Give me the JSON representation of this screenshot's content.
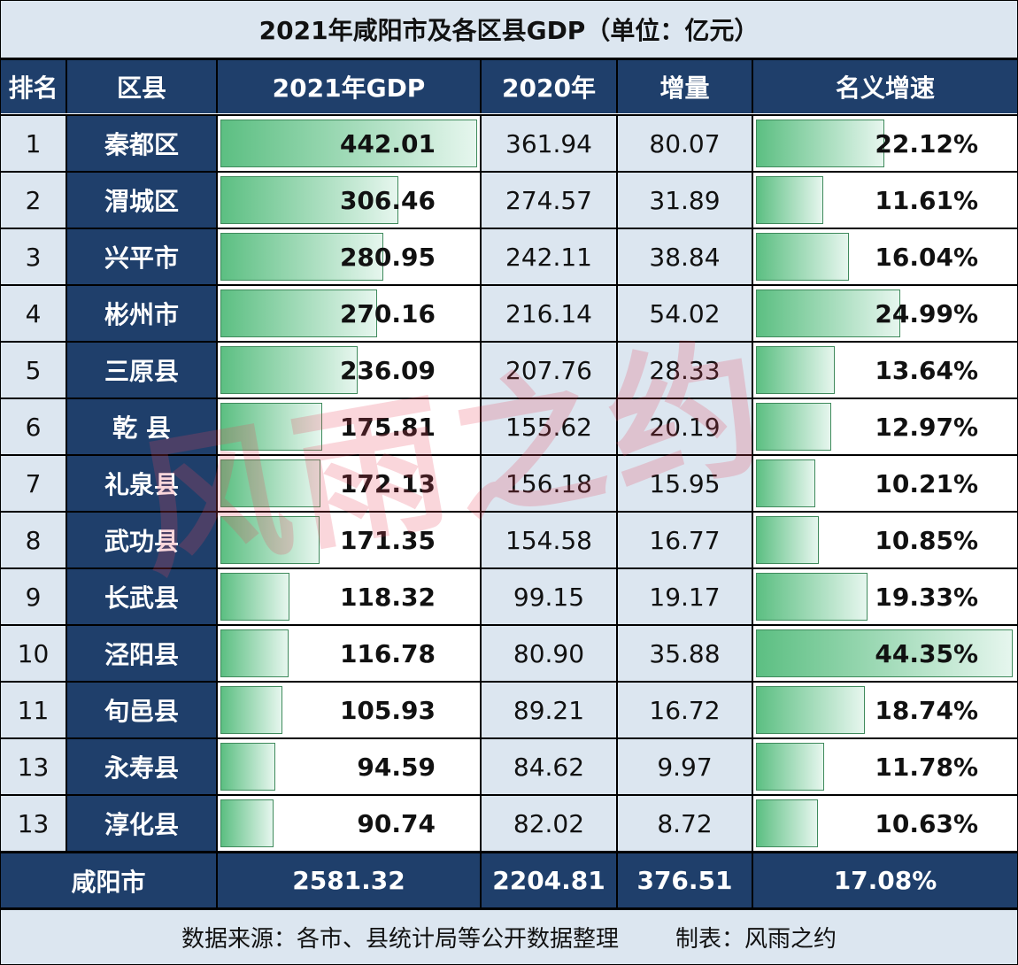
{
  "title": "2021年咸阳市及各区县GDP（单位：亿元）",
  "headers": {
    "rank": "排名",
    "district": "区县",
    "gdp2021": "2021年GDP",
    "gdp2020": "2020年",
    "increase": "增量",
    "growth": "名义增速"
  },
  "rows": [
    {
      "rank": "1",
      "name": "秦都区",
      "gdp2021": "442.01",
      "gdp2020": "361.94",
      "increase": "80.07",
      "growth": "22.12%"
    },
    {
      "rank": "2",
      "name": "渭城区",
      "gdp2021": "306.46",
      "gdp2020": "274.57",
      "increase": "31.89",
      "growth": "11.61%"
    },
    {
      "rank": "3",
      "name": "兴平市",
      "gdp2021": "280.95",
      "gdp2020": "242.11",
      "increase": "38.84",
      "growth": "16.04%"
    },
    {
      "rank": "4",
      "name": "彬州市",
      "gdp2021": "270.16",
      "gdp2020": "216.14",
      "increase": "54.02",
      "growth": "24.99%"
    },
    {
      "rank": "5",
      "name": "三原县",
      "gdp2021": "236.09",
      "gdp2020": "207.76",
      "increase": "28.33",
      "growth": "13.64%"
    },
    {
      "rank": "6",
      "name": "乾 县",
      "gdp2021": "175.81",
      "gdp2020": "155.62",
      "increase": "20.19",
      "growth": "12.97%"
    },
    {
      "rank": "7",
      "name": "礼泉县",
      "gdp2021": "172.13",
      "gdp2020": "156.18",
      "increase": "15.95",
      "growth": "10.21%"
    },
    {
      "rank": "8",
      "name": "武功县",
      "gdp2021": "171.35",
      "gdp2020": "154.58",
      "increase": "16.77",
      "growth": "10.85%"
    },
    {
      "rank": "9",
      "name": "长武县",
      "gdp2021": "118.32",
      "gdp2020": "99.15",
      "increase": "19.17",
      "growth": "19.33%"
    },
    {
      "rank": "10",
      "name": "泾阳县",
      "gdp2021": "116.78",
      "gdp2020": "80.90",
      "increase": "35.88",
      "growth": "44.35%"
    },
    {
      "rank": "11",
      "name": "旬邑县",
      "gdp2021": "105.93",
      "gdp2020": "89.21",
      "increase": "16.72",
      "growth": "18.74%"
    },
    {
      "rank": "13",
      "name": "永寿县",
      "gdp2021": "94.59",
      "gdp2020": "84.62",
      "increase": "9.97",
      "growth": "11.78%"
    },
    {
      "rank": "13",
      "name": "淳化县",
      "gdp2021": "90.74",
      "gdp2020": "82.02",
      "increase": "8.72",
      "growth": "10.63%"
    }
  ],
  "total": {
    "name": "咸阳市",
    "gdp2021": "2581.32",
    "gdp2020": "2204.81",
    "increase": "376.51",
    "growth": "17.08%"
  },
  "footer": {
    "source": "数据来源：各市、县统计局等公开数据整理",
    "maker": "制表：风雨之约"
  },
  "watermark": "风雨之约",
  "colors": {
    "header_bg": "#1f3f6b",
    "light_bg": "#dce6f0",
    "bar_start": "#5cbf82",
    "bar_end": "#e6f6ee"
  }
}
